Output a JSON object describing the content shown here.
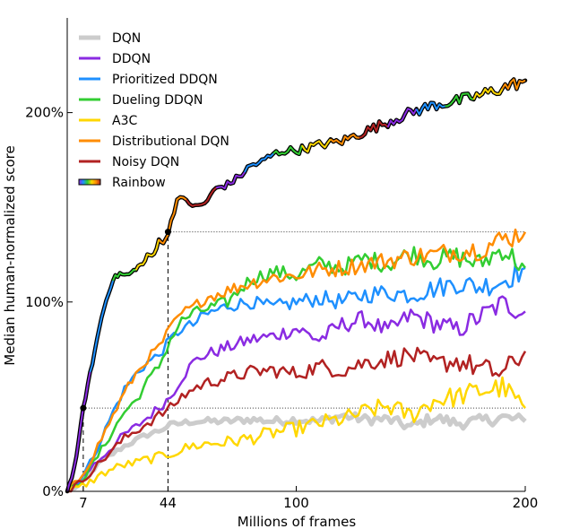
{
  "chart_data": {
    "type": "line",
    "title": "",
    "xlabel": "Millions of frames",
    "ylabel": "Median human-normalized score",
    "xlim": [
      0,
      200
    ],
    "ylim": [
      0,
      2.5
    ],
    "xticks": [
      7,
      44,
      100,
      200
    ],
    "xtick_labels": [
      "7",
      "44",
      "100",
      "200"
    ],
    "yticks": [
      0,
      1,
      2
    ],
    "ytick_labels": [
      "0%",
      "100%",
      "200%"
    ],
    "legend_position": "top-left",
    "grid": false,
    "reference_lines": [
      {
        "type": "horizontal",
        "y": 0.44,
        "x_range": [
          7,
          200
        ],
        "style": "dotted"
      },
      {
        "type": "horizontal",
        "y": 1.37,
        "x_range": [
          44,
          200
        ],
        "style": "dotted"
      },
      {
        "type": "vertical",
        "x": 7,
        "y_range": [
          0,
          0.44
        ],
        "style": "dashed"
      },
      {
        "type": "vertical",
        "x": 44,
        "y_range": [
          0,
          1.37
        ],
        "style": "dashed"
      }
    ],
    "markers": [
      {
        "x": 7,
        "y": 0.44
      },
      {
        "x": 44,
        "y": 1.37
      }
    ],
    "series": [
      {
        "name": "DQN",
        "color": "#cccccc",
        "width": 5,
        "x": [
          0,
          5,
          10,
          15,
          20,
          25,
          30,
          35,
          40,
          45,
          50,
          55,
          60,
          70,
          80,
          90,
          100,
          110,
          120,
          130,
          140,
          150,
          160,
          170,
          180,
          190,
          200
        ],
        "y": [
          0.0,
          0.03,
          0.1,
          0.16,
          0.2,
          0.24,
          0.27,
          0.3,
          0.32,
          0.35,
          0.36,
          0.37,
          0.37,
          0.37,
          0.38,
          0.37,
          0.38,
          0.37,
          0.4,
          0.38,
          0.38,
          0.34,
          0.39,
          0.36,
          0.37,
          0.39,
          0.37
        ]
      },
      {
        "name": "DDQN",
        "color": "#8a2be2",
        "width": 2.5,
        "x": [
          0,
          5,
          10,
          15,
          20,
          25,
          30,
          35,
          40,
          45,
          50,
          55,
          60,
          70,
          80,
          90,
          100,
          110,
          120,
          130,
          140,
          150,
          160,
          170,
          180,
          190,
          200
        ],
        "y": [
          0.0,
          0.05,
          0.12,
          0.18,
          0.24,
          0.3,
          0.34,
          0.39,
          0.44,
          0.5,
          0.6,
          0.68,
          0.72,
          0.76,
          0.8,
          0.82,
          0.86,
          0.8,
          0.88,
          0.91,
          0.84,
          0.93,
          0.89,
          0.85,
          0.92,
          0.99,
          0.95
        ]
      },
      {
        "name": "Prioritized DDQN",
        "color": "#1e90ff",
        "width": 2.5,
        "x": [
          0,
          5,
          10,
          15,
          20,
          25,
          30,
          35,
          40,
          45,
          50,
          55,
          60,
          70,
          80,
          90,
          100,
          110,
          120,
          130,
          140,
          150,
          160,
          170,
          180,
          190,
          200
        ],
        "y": [
          0.0,
          0.05,
          0.15,
          0.28,
          0.42,
          0.54,
          0.62,
          0.68,
          0.72,
          0.8,
          0.86,
          0.88,
          0.93,
          0.98,
          1.0,
          0.97,
          1.0,
          1.02,
          1.0,
          1.04,
          1.05,
          1.04,
          1.07,
          1.1,
          1.08,
          1.11,
          1.18
        ]
      },
      {
        "name": "Dueling DDQN",
        "color": "#32cd32",
        "width": 2.5,
        "x": [
          0,
          5,
          10,
          15,
          20,
          25,
          30,
          35,
          40,
          45,
          50,
          55,
          60,
          70,
          80,
          90,
          100,
          110,
          120,
          130,
          140,
          150,
          160,
          170,
          180,
          190,
          200
        ],
        "y": [
          0.0,
          0.04,
          0.12,
          0.22,
          0.32,
          0.42,
          0.48,
          0.58,
          0.66,
          0.8,
          0.9,
          0.94,
          0.96,
          1.0,
          1.12,
          1.16,
          1.14,
          1.2,
          1.18,
          1.23,
          1.2,
          1.26,
          1.22,
          1.24,
          1.2,
          1.28,
          1.18
        ]
      },
      {
        "name": "A3C",
        "color": "#ffd700",
        "width": 2.5,
        "x": [
          0,
          5,
          10,
          15,
          20,
          25,
          30,
          35,
          40,
          45,
          50,
          55,
          60,
          70,
          80,
          90,
          100,
          110,
          120,
          130,
          140,
          150,
          160,
          170,
          180,
          190,
          200
        ],
        "y": [
          0.0,
          0.02,
          0.05,
          0.09,
          0.12,
          0.14,
          0.15,
          0.17,
          0.18,
          0.2,
          0.22,
          0.24,
          0.25,
          0.26,
          0.28,
          0.31,
          0.33,
          0.36,
          0.38,
          0.42,
          0.45,
          0.4,
          0.48,
          0.5,
          0.53,
          0.55,
          0.44
        ]
      },
      {
        "name": "Distributional DQN",
        "color": "#ff8c00",
        "width": 2.5,
        "x": [
          0,
          5,
          10,
          15,
          20,
          25,
          30,
          35,
          40,
          45,
          50,
          55,
          60,
          70,
          80,
          90,
          100,
          110,
          120,
          130,
          140,
          150,
          160,
          170,
          180,
          190,
          200
        ],
        "y": [
          0.0,
          0.06,
          0.16,
          0.28,
          0.4,
          0.52,
          0.62,
          0.7,
          0.76,
          0.86,
          0.94,
          0.97,
          1.02,
          1.06,
          1.1,
          1.13,
          1.14,
          1.17,
          1.18,
          1.2,
          1.22,
          1.24,
          1.25,
          1.27,
          1.28,
          1.33,
          1.37
        ]
      },
      {
        "name": "Noisy DQN",
        "color": "#b22222",
        "width": 2.5,
        "x": [
          0,
          5,
          10,
          15,
          20,
          25,
          30,
          35,
          40,
          45,
          50,
          55,
          60,
          70,
          80,
          90,
          100,
          110,
          120,
          130,
          140,
          150,
          160,
          170,
          180,
          190,
          200
        ],
        "y": [
          0.0,
          0.04,
          0.1,
          0.16,
          0.22,
          0.28,
          0.32,
          0.36,
          0.4,
          0.44,
          0.5,
          0.54,
          0.57,
          0.6,
          0.63,
          0.64,
          0.62,
          0.66,
          0.64,
          0.68,
          0.7,
          0.72,
          0.67,
          0.69,
          0.65,
          0.62,
          0.74
        ]
      },
      {
        "name": "Rainbow",
        "color": "#000000",
        "width": 2.5,
        "style": "rainbow",
        "x": [
          0,
          3,
          5,
          7,
          10,
          13,
          15,
          18,
          20,
          23,
          25,
          28,
          30,
          33,
          35,
          38,
          40,
          42,
          44,
          48,
          52,
          56,
          60,
          65,
          70,
          75,
          80,
          85,
          90,
          95,
          100,
          110,
          120,
          130,
          140,
          150,
          160,
          170,
          180,
          190,
          200
        ],
        "y": [
          0.0,
          0.12,
          0.26,
          0.44,
          0.62,
          0.8,
          0.92,
          1.05,
          1.12,
          1.15,
          1.14,
          1.15,
          1.18,
          1.2,
          1.24,
          1.25,
          1.34,
          1.3,
          1.37,
          1.54,
          1.54,
          1.5,
          1.52,
          1.6,
          1.62,
          1.66,
          1.72,
          1.74,
          1.78,
          1.8,
          1.8,
          1.83,
          1.85,
          1.9,
          1.95,
          2.0,
          2.04,
          2.06,
          2.09,
          2.13,
          2.17
        ]
      }
    ]
  }
}
